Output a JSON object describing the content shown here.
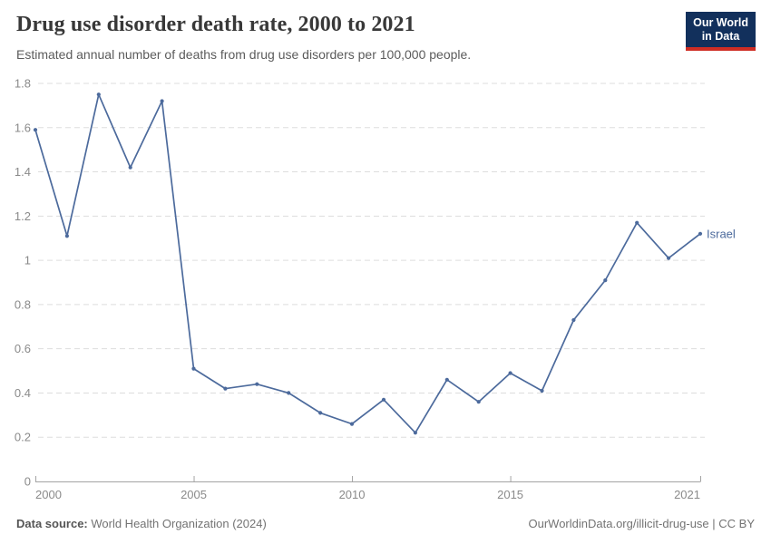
{
  "header": {
    "title": "Drug use disorder death rate, 2000 to 2021",
    "subtitle": "Estimated annual number of deaths from drug use disorders per 100,000 people.",
    "logo": {
      "line1": "Our World",
      "line2": "in Data"
    }
  },
  "chart_data": {
    "type": "line",
    "title": "Drug use disorder death rate, 2000 to 2021",
    "entity": "Israel",
    "x": [
      2000,
      2001,
      2002,
      2003,
      2004,
      2005,
      2006,
      2007,
      2008,
      2009,
      2010,
      2011,
      2012,
      2013,
      2014,
      2015,
      2016,
      2017,
      2018,
      2019,
      2020,
      2021
    ],
    "values": [
      1.59,
      1.11,
      1.75,
      1.42,
      1.72,
      0.51,
      0.42,
      0.44,
      0.4,
      0.31,
      0.26,
      0.37,
      0.22,
      0.46,
      0.36,
      0.49,
      0.41,
      0.73,
      0.91,
      1.17,
      1.01,
      1.12
    ],
    "ylim": [
      0,
      1.8
    ],
    "yticks": [
      0,
      0.2,
      0.4,
      0.6,
      0.8,
      1,
      1.2,
      1.4,
      1.6,
      1.8
    ],
    "xticks": [
      2000,
      2005,
      2010,
      2015,
      2021
    ],
    "grid": "horizontal-dashed",
    "legend_position": "end-of-line",
    "line_color": "#4c6a9c",
    "xlabel": "",
    "ylabel": ""
  },
  "footer": {
    "source_label": "Data source:",
    "source_value": " World Health Organization (2024)",
    "credit": "OurWorldinData.org/illicit-drug-use | CC BY"
  },
  "colors": {
    "line": "#4c6a9c",
    "grid": "#dddddd",
    "axis": "#a3a3a3",
    "tick_text": "#8a8a8a",
    "logo_bg": "#12305c",
    "logo_accent": "#cf2d24",
    "title_text": "#383838"
  }
}
